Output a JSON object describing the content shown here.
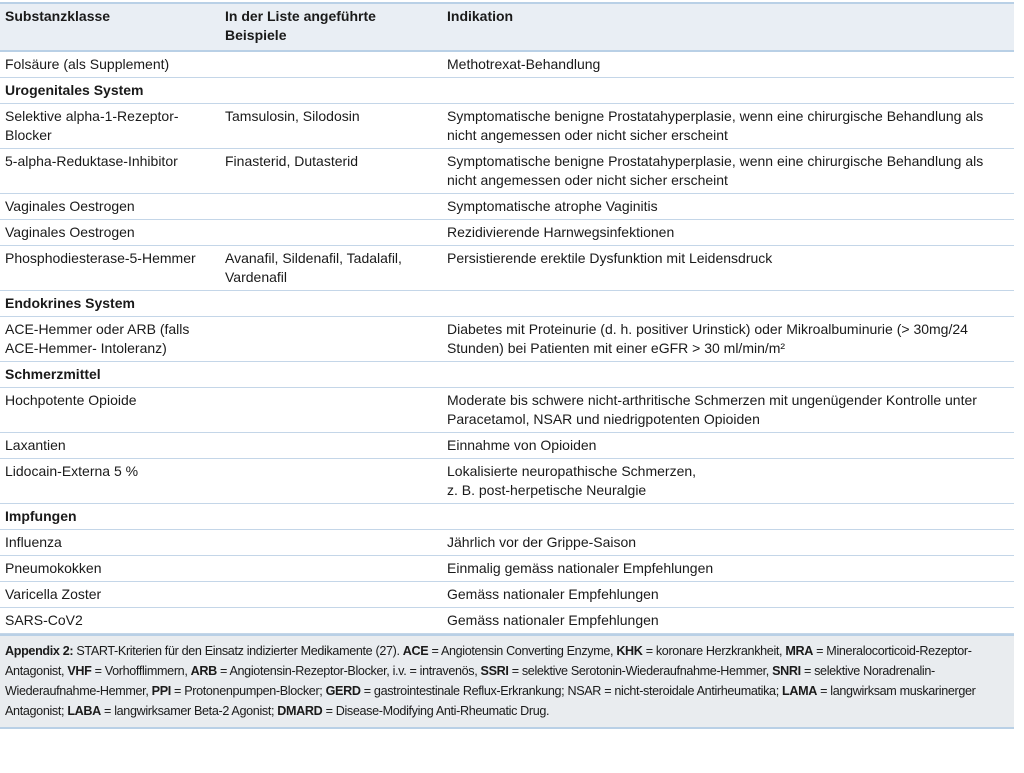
{
  "table": {
    "headers": [
      "Substanzklasse",
      "In der Liste angeführte Beispiele",
      "Indikation"
    ],
    "rows": [
      {
        "type": "row",
        "cells": [
          "Folsäure (als Supplement)",
          "",
          "Methotrexat-Behandlung"
        ]
      },
      {
        "type": "section",
        "label": "Urogenitales System"
      },
      {
        "type": "row",
        "cells": [
          "Selektive alpha-1-Rezeptor-Blocker",
          "Tamsulosin, Silodosin",
          "Symptomatische benigne Prostatahyperplasie, wenn eine chirurgische Behandlung als nicht angemessen oder nicht sicher erscheint"
        ]
      },
      {
        "type": "row",
        "cells": [
          "5-alpha-Reduktase-Inhibitor",
          "Finasterid, Dutasterid",
          "Symptomatische benigne Prostatahyperplasie, wenn eine chirurgische Behandlung als nicht angemessen oder nicht sicher erscheint"
        ]
      },
      {
        "type": "row",
        "cells": [
          "Vaginales Oestrogen",
          "",
          "Symptomatische atrophe Vaginitis"
        ]
      },
      {
        "type": "row",
        "cells": [
          "Vaginales Oestrogen",
          "",
          "Rezidivierende Harnwegsinfektionen"
        ]
      },
      {
        "type": "row",
        "cells": [
          "Phosphodiesterase-5-Hemmer",
          "Avanafil, Sildenafil, Tadalafil, Vardenafil",
          "Persistierende erektile Dysfunktion mit Leidensdruck"
        ]
      },
      {
        "type": "section",
        "label": "Endokrines System"
      },
      {
        "type": "row",
        "cells": [
          "ACE-Hemmer oder ARB (falls ACE-Hemmer- Intoleranz)",
          "",
          "Diabetes mit Proteinurie (d. h. positiver Urinstick) oder Mikroalbuminurie (> 30mg/24 Stunden) bei Patienten mit einer eGFR > 30 ml/min/m²"
        ]
      },
      {
        "type": "section",
        "label": "Schmerzmittel"
      },
      {
        "type": "row",
        "cells": [
          "Hochpotente Opioide",
          "",
          "Moderate bis schwere nicht-arthritische Schmerzen mit ungenügender Kontrolle unter Paracetamol, NSAR und niedrigpotenten Opioiden"
        ]
      },
      {
        "type": "row",
        "cells": [
          "Laxantien",
          "",
          "Einnahme von Opioiden"
        ]
      },
      {
        "type": "row",
        "cells": [
          "Lidocain-Externa 5 %",
          "",
          "Lokalisierte neuropathische Schmerzen,\nz. B. post-herpetische Neuralgie"
        ]
      },
      {
        "type": "section",
        "label": "Impfungen"
      },
      {
        "type": "row",
        "cells": [
          "Influenza",
          "",
          "Jährlich vor der Grippe-Saison"
        ]
      },
      {
        "type": "row",
        "cells": [
          "Pneumokokken",
          "",
          "Einmalig gemäss nationaler Empfehlungen"
        ]
      },
      {
        "type": "row",
        "cells": [
          "Varicella Zoster",
          "",
          "Gemäss nationaler Empfehlungen"
        ]
      },
      {
        "type": "row",
        "cells": [
          "SARS-CoV2",
          "",
          "Gemäss nationaler Empfehlungen"
        ]
      }
    ]
  },
  "caption": [
    {
      "b": "Appendix 2:",
      "t": " START-Kriterien für den Einsatz indizierter Medikamente (27). "
    },
    {
      "b": "ACE",
      "t": " = Angiotensin Converting Enzyme, "
    },
    {
      "b": "KHK",
      "t": " = koronare Herzkrankheit, "
    },
    {
      "b": "MRA",
      "t": " = Mineralocorticoid-Rezeptor-Antagonist, "
    },
    {
      "b": "VHF",
      "t": " = Vorhofflimmern, "
    },
    {
      "b": "ARB",
      "t": " = Angiotensin-Rezeptor-Blocker, i.v. = intravenös, "
    },
    {
      "b": "SSRI",
      "t": " = selektive Sero­tonin-Wiederaufnahme-Hemmer, "
    },
    {
      "b": "SNRI",
      "t": " = selektive Noradrenalin-Wiederaufnahme-Hemmer, "
    },
    {
      "b": "PPI",
      "t": " = Protonenpumpen-Blocker; "
    },
    {
      "b": "GERD",
      "t": " = gastrointestinale Reflux-Erkrankung; NSAR = nicht-steroidale Antirheumatika; "
    },
    {
      "b": "LAMA",
      "t": " = langwirksam muskarinerger Antagonist; "
    },
    {
      "b": "LABA",
      "t": " = langwirksamer Beta-2 Agonist; "
    },
    {
      "b": "DMARD",
      "t": " = Disease-Modifying Anti-Rheumatic Drug."
    }
  ],
  "colors": {
    "header_bg": "#e9eef4",
    "rule": "#b9d0e6",
    "caption_bg": "#e9ecef"
  }
}
